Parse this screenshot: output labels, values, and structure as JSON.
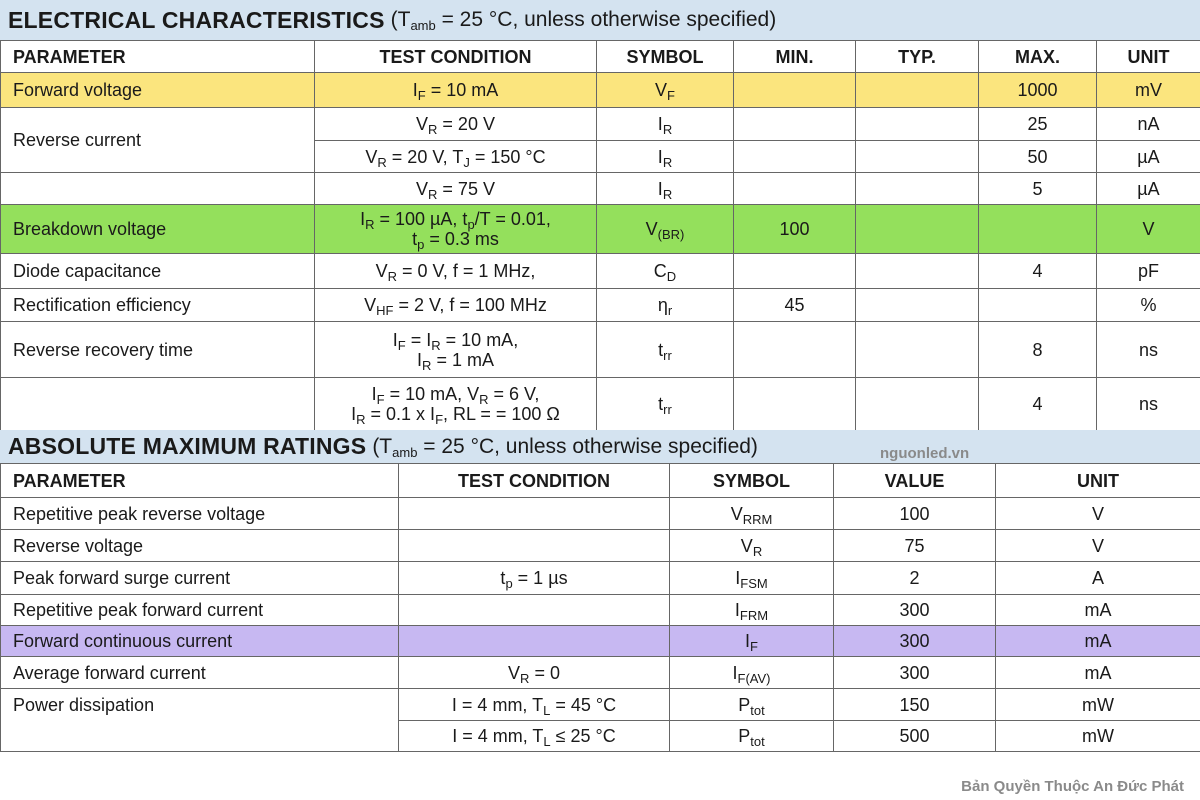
{
  "electrical": {
    "title": "ELECTRICAL CHARACTERISTICS",
    "condition": [
      " (T",
      {
        "sub": "amb"
      },
      " = 25 °C, unless otherwise specified)"
    ],
    "headers": [
      "PARAMETER",
      "TEST CONDITION",
      "SYMBOL",
      "MIN.",
      "TYP.",
      "MAX.",
      "UNIT"
    ],
    "rows": [
      {
        "color": "#fbe57e",
        "cells": [
          "Forward voltage",
          [
            "I",
            {
              "sub": "F"
            },
            " = 10 mA"
          ],
          [
            "V",
            {
              "sub": "F"
            }
          ],
          null,
          null,
          "1000",
          "mV"
        ]
      },
      {
        "cells": [
          "Reverse current",
          [
            "V",
            {
              "sub": "R"
            },
            " = 20 V"
          ],
          [
            "I",
            {
              "sub": "R"
            }
          ],
          null,
          null,
          "25",
          "nA"
        ]
      },
      {
        "cells": [
          null,
          [
            "V",
            {
              "sub": "R"
            },
            " = 20 V, T",
            {
              "sub": "J"
            },
            " = 150 °C"
          ],
          [
            "I",
            {
              "sub": "R"
            }
          ],
          null,
          null,
          "50",
          "µA"
        ]
      },
      {
        "cells": [
          null,
          [
            "V",
            {
              "sub": "R"
            },
            " = 75 V"
          ],
          [
            "I",
            {
              "sub": "R"
            }
          ],
          null,
          null,
          "5",
          "µA"
        ]
      },
      {
        "color": "#94e05c",
        "cells": [
          "Breakdown voltage",
          [
            [
              "I",
              {
                "sub": "R"
              },
              " = 100 µA, t",
              {
                "sub": "p"
              },
              "/T = 0.01,"
            ],
            [
              "t",
              {
                "sub": "p"
              },
              " = 0.3 ms"
            ]
          ],
          [
            "V",
            {
              "sub": "(BR)"
            }
          ],
          "100",
          null,
          null,
          "V"
        ]
      },
      {
        "cells": [
          "Diode capacitance",
          [
            "V",
            {
              "sub": "R"
            },
            " = 0 V, f = 1 MHz,"
          ],
          [
            "C",
            {
              "sub": "D"
            }
          ],
          null,
          null,
          "4",
          "pF"
        ]
      },
      {
        "cells": [
          "Rectification efficiency",
          [
            "V",
            {
              "sub": "HF"
            },
            " = 2 V, f = 100 MHz"
          ],
          [
            "η",
            {
              "sub": "r"
            }
          ],
          "45",
          null,
          null,
          "%"
        ]
      },
      {
        "cells": [
          "Reverse recovery time",
          [
            [
              "I",
              {
                "sub": "F"
              },
              " = I",
              {
                "sub": "R"
              },
              " = 10 mA,"
            ],
            [
              "I",
              {
                "sub": "R"
              },
              " = 1 mA"
            ]
          ],
          [
            "t",
            {
              "sub": "rr"
            }
          ],
          null,
          null,
          "8",
          "ns"
        ]
      },
      {
        "cells": [
          null,
          [
            [
              "I",
              {
                "sub": "F"
              },
              " = 10 mA, V",
              {
                "sub": "R"
              },
              " = 6 V,"
            ],
            [
              "I",
              {
                "sub": "R"
              },
              " = 0.1 x I",
              {
                "sub": "F"
              },
              ", RL = = 100 Ω"
            ]
          ],
          [
            "t",
            {
              "sub": "rr"
            }
          ],
          null,
          null,
          "4",
          "ns"
        ]
      }
    ]
  },
  "absolute": {
    "title": "ABSOLUTE MAXIMUM RATINGS",
    "condition": [
      " (T",
      {
        "sub": "amb"
      },
      " = 25 °C, unless otherwise specified)"
    ],
    "watermark": "nguonled.vn",
    "headers": [
      "PARAMETER",
      "TEST CONDITION",
      "SYMBOL",
      "VALUE",
      "UNIT"
    ],
    "rows": [
      {
        "cells": [
          "Repetitive peak reverse voltage",
          null,
          [
            "V",
            {
              "sub": "RRM"
            }
          ],
          "100",
          "V"
        ]
      },
      {
        "cells": [
          "Reverse voltage",
          null,
          [
            "V",
            {
              "sub": "R"
            }
          ],
          "75",
          "V"
        ]
      },
      {
        "cells": [
          "Peak forward surge current",
          [
            "t",
            {
              "sub": "p"
            },
            " = 1 µs"
          ],
          [
            "I",
            {
              "sub": "FSM"
            }
          ],
          "2",
          "A"
        ]
      },
      {
        "cells": [
          "Repetitive peak forward current",
          null,
          [
            "I",
            {
              "sub": "FRM"
            }
          ],
          "300",
          "mA"
        ]
      },
      {
        "color": "#c7b8f2",
        "cells": [
          "Forward continuous current",
          null,
          [
            "I",
            {
              "sub": "F"
            }
          ],
          "300",
          "mA"
        ]
      },
      {
        "cells": [
          "Average forward current",
          [
            "V",
            {
              "sub": "R"
            },
            " = 0"
          ],
          [
            "I",
            {
              "sub": "F(AV)"
            }
          ],
          "300",
          "mA"
        ]
      },
      {
        "cells": [
          "Power dissipation",
          [
            "I = 4 mm, T",
            {
              "sub": "L"
            },
            " = 45 °C"
          ],
          [
            "P",
            {
              "sub": "tot"
            }
          ],
          "150",
          "mW"
        ]
      },
      {
        "cells": [
          null,
          [
            "I = 4 mm, T",
            {
              "sub": "L"
            },
            " ≤ 25 °C"
          ],
          [
            "P",
            {
              "sub": "tot"
            }
          ],
          "500",
          "mW"
        ]
      }
    ]
  },
  "footer": "Bản Quyền Thuộc An Đức Phát"
}
